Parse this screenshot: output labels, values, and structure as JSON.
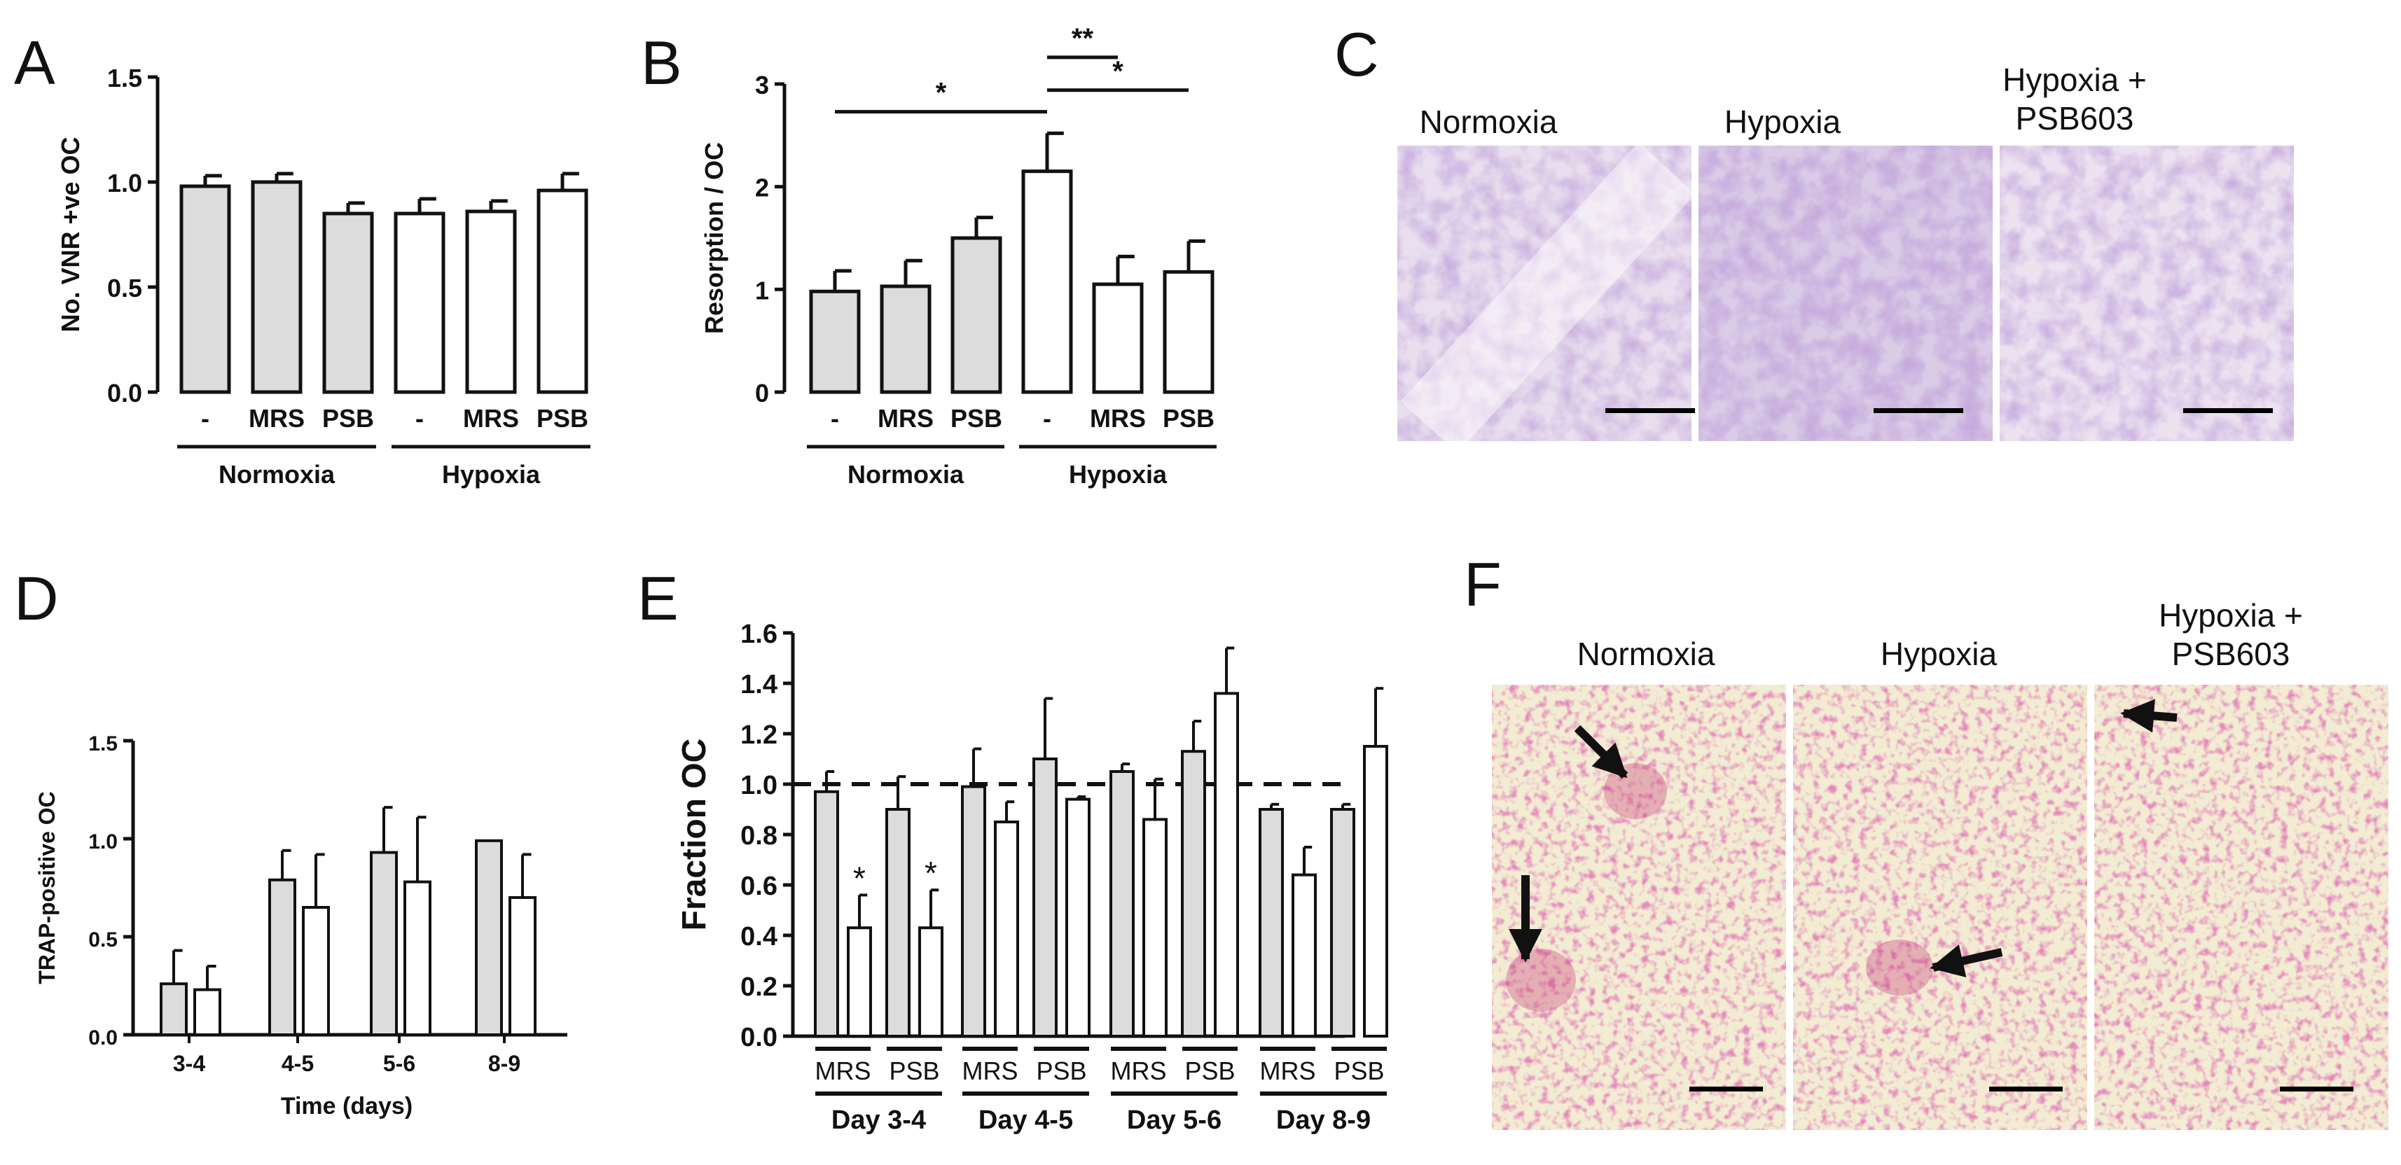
{
  "panels": {
    "A": {
      "letter": "A"
    },
    "B": {
      "letter": "B"
    },
    "C": {
      "letter": "C"
    },
    "D": {
      "letter": "D"
    },
    "E": {
      "letter": "E"
    },
    "F": {
      "letter": "F"
    }
  },
  "micrographs_c": {
    "labels": [
      "Normoxia",
      "Hypoxia",
      "Hypoxia +",
      "PSB603"
    ]
  },
  "micrographs_f": {
    "labels": [
      "Normoxia",
      "Hypoxia",
      "Hypoxia +",
      "PSB603"
    ]
  },
  "colors": {
    "normoxia_fill": "#dcdcdc",
    "hypoxia_fill": "#ffffff",
    "stroke": "#111111",
    "resorption_stain": "#b48fc8",
    "trap_stain": "#c8407a"
  },
  "chart_data": [
    {
      "id": "A",
      "type": "bar",
      "ylabel": "No. VNR +ve OC",
      "ylim": [
        0,
        1.5
      ],
      "yticks": [
        "0.0",
        "0.5",
        "1.0",
        "1.5"
      ],
      "categories": [
        "-",
        "MRS",
        "PSB",
        "-",
        "MRS",
        "PSB"
      ],
      "groups": [
        "Normoxia",
        "Hypoxia"
      ],
      "values": [
        0.98,
        1.0,
        0.85,
        0.85,
        0.86,
        0.96
      ],
      "errors": [
        0.05,
        0.04,
        0.05,
        0.07,
        0.05,
        0.08
      ],
      "fill_group": [
        "normoxia",
        "normoxia",
        "normoxia",
        "hypoxia",
        "hypoxia",
        "hypoxia"
      ]
    },
    {
      "id": "B",
      "type": "bar",
      "ylabel": "Resorption / OC",
      "ylim": [
        0,
        3
      ],
      "yticks": [
        "0",
        "1",
        "2",
        "3"
      ],
      "categories": [
        "-",
        "MRS",
        "PSB",
        "-",
        "MRS",
        "PSB"
      ],
      "groups": [
        "Normoxia",
        "Hypoxia"
      ],
      "values": [
        0.98,
        1.03,
        1.5,
        2.15,
        1.05,
        1.17
      ],
      "errors": [
        0.2,
        0.25,
        0.2,
        0.37,
        0.27,
        0.3
      ],
      "fill_group": [
        "normoxia",
        "normoxia",
        "normoxia",
        "hypoxia",
        "hypoxia",
        "hypoxia"
      ],
      "significance": [
        {
          "from": 0,
          "to": 3,
          "label": "*"
        },
        {
          "from": 3,
          "to": 4,
          "label": "**"
        },
        {
          "from": 3,
          "to": 5,
          "label": "*"
        }
      ]
    },
    {
      "id": "D",
      "type": "bar",
      "ylabel": "TRAP-positive OC",
      "xlabel": "Time (days)",
      "ylim": [
        0,
        1.5
      ],
      "yticks": [
        "0.0",
        "0.5",
        "1.0",
        "1.5"
      ],
      "categories": [
        "3-4",
        "4-5",
        "5-6",
        "8-9"
      ],
      "series": [
        {
          "fill": "normoxia",
          "values": [
            0.26,
            0.79,
            0.93,
            0.99
          ],
          "errors": [
            0.17,
            0.15,
            0.23,
            0.0
          ]
        },
        {
          "fill": "hypoxia",
          "values": [
            0.23,
            0.65,
            0.78,
            0.7
          ],
          "errors": [
            0.12,
            0.27,
            0.33,
            0.22
          ]
        }
      ]
    },
    {
      "id": "E",
      "type": "bar",
      "ylabel": "Fraction OC",
      "ylim": [
        0,
        1.6
      ],
      "yticks": [
        "0.0",
        "0.2",
        "0.4",
        "0.6",
        "0.8",
        "1.0",
        "1.2",
        "1.4",
        "1.6"
      ],
      "reference_line": 1.0,
      "groups": [
        "Day 3-4",
        "Day 4-5",
        "Day 5-6",
        "Day 8-9"
      ],
      "subgroups": [
        "MRS",
        "PSB"
      ],
      "values": [
        [
          0.97,
          0.43,
          0.9,
          0.43
        ],
        [
          0.99,
          0.85,
          1.1,
          0.94
        ],
        [
          1.05,
          0.86,
          1.13,
          1.36
        ],
        [
          0.9,
          0.64,
          0.9,
          1.15
        ]
      ],
      "errors": [
        [
          0.08,
          0.13,
          0.13,
          0.15
        ],
        [
          0.15,
          0.08,
          0.24,
          0.01
        ],
        [
          0.03,
          0.16,
          0.12,
          0.18
        ],
        [
          0.02,
          0.11,
          0.02,
          0.23
        ]
      ],
      "bar_fills": [
        "normoxia",
        "hypoxia",
        "normoxia",
        "hypoxia"
      ],
      "significance_marks": [
        {
          "group": 0,
          "bar": 1,
          "label": "*"
        },
        {
          "group": 0,
          "bar": 3,
          "label": "*"
        }
      ]
    }
  ]
}
